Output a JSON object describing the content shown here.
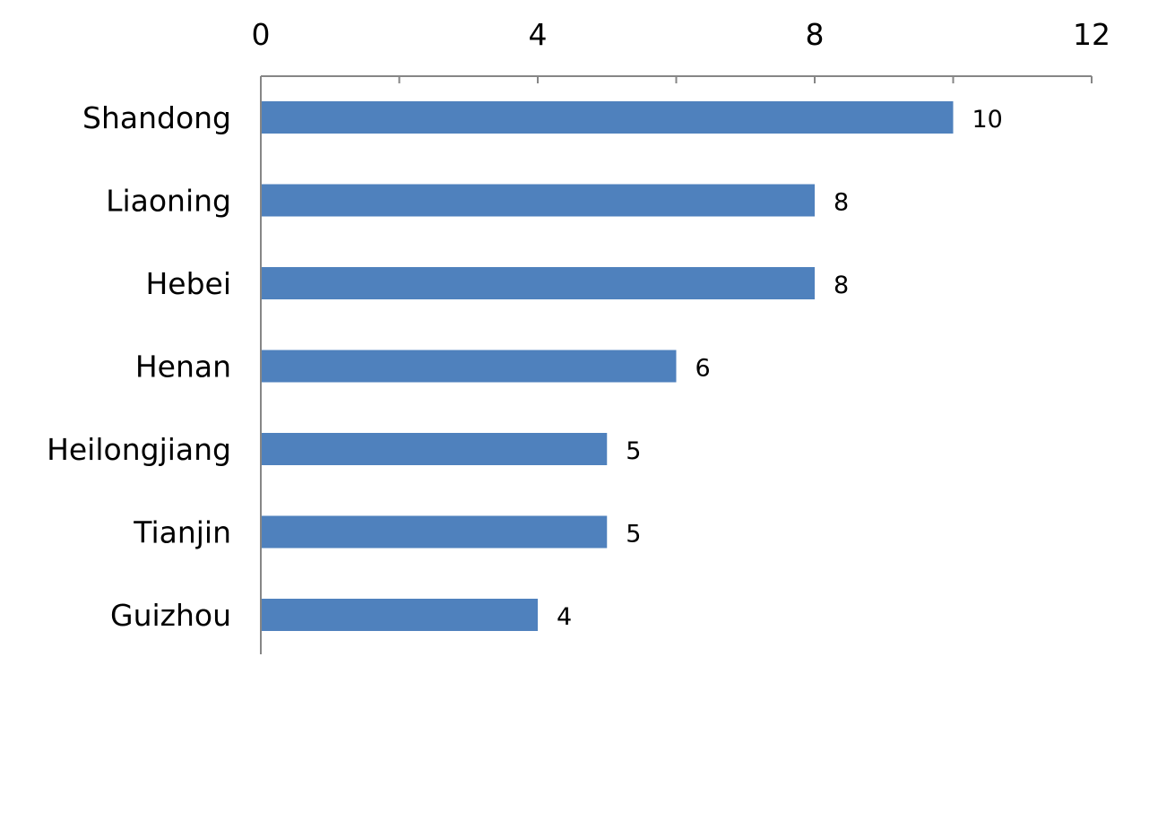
{
  "chart_data": {
    "type": "bar",
    "orientation": "horizontal",
    "categories": [
      "Shandong",
      "Liaoning",
      "Hebei",
      "Henan",
      "Heilongjiang",
      "Tianjin",
      "Guizhou"
    ],
    "values": [
      10,
      8,
      8,
      6,
      5,
      5,
      4
    ],
    "data_labels": [
      "10",
      "8",
      "8",
      "6",
      "5",
      "5",
      "4"
    ],
    "title": "",
    "xlabel": "",
    "ylabel": "",
    "xlim": [
      0,
      12
    ],
    "major_ticks": [
      0,
      4,
      8,
      12
    ],
    "tick_labels": [
      "0",
      "4",
      "8",
      "12"
    ],
    "minor_ticks": [
      2,
      6,
      10
    ],
    "axis_position": "top",
    "grid": false,
    "legend": "none",
    "colors": {
      "bar": "#4F81BD",
      "axis": "#868686",
      "text": "#000000",
      "background": "#FFFFFF"
    }
  }
}
